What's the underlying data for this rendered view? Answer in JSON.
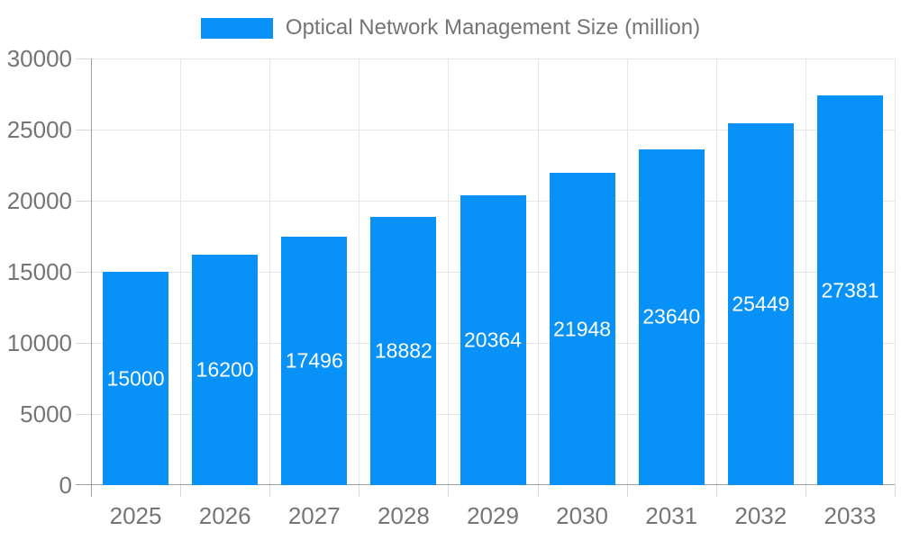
{
  "legend": {
    "label": "Optical Network Management Size (million)"
  },
  "chart_data": {
    "type": "bar",
    "title": "Optical Network Management Size (million)",
    "series_name": "Optical Network Management Size (million)",
    "categories": [
      "2025",
      "2026",
      "2027",
      "2028",
      "2029",
      "2030",
      "2031",
      "2032",
      "2033"
    ],
    "values": [
      15000,
      16200,
      17496,
      18882,
      20364,
      21948,
      23640,
      25449,
      27381
    ],
    "data_labels": [
      "15000",
      "16200",
      "17496",
      "18882",
      "20364",
      "21948",
      "23640",
      "25449",
      "27381"
    ],
    "xlabel": "",
    "ylabel": "",
    "ylim": [
      0,
      30000
    ],
    "ytick_step": 5000,
    "ytick_labels": [
      "0",
      "5000",
      "10000",
      "15000",
      "20000",
      "25000",
      "30000"
    ],
    "grid": true,
    "legend_position": "top",
    "bar_color": "#0892f8",
    "data_label_color": "#ffffff",
    "axis_text_color": "#757575",
    "grid_color": "#e6e6e6",
    "tick_color": "#d9d9d9",
    "axis_line_color": "#9e9e9e",
    "background_color": "#ffffff"
  }
}
